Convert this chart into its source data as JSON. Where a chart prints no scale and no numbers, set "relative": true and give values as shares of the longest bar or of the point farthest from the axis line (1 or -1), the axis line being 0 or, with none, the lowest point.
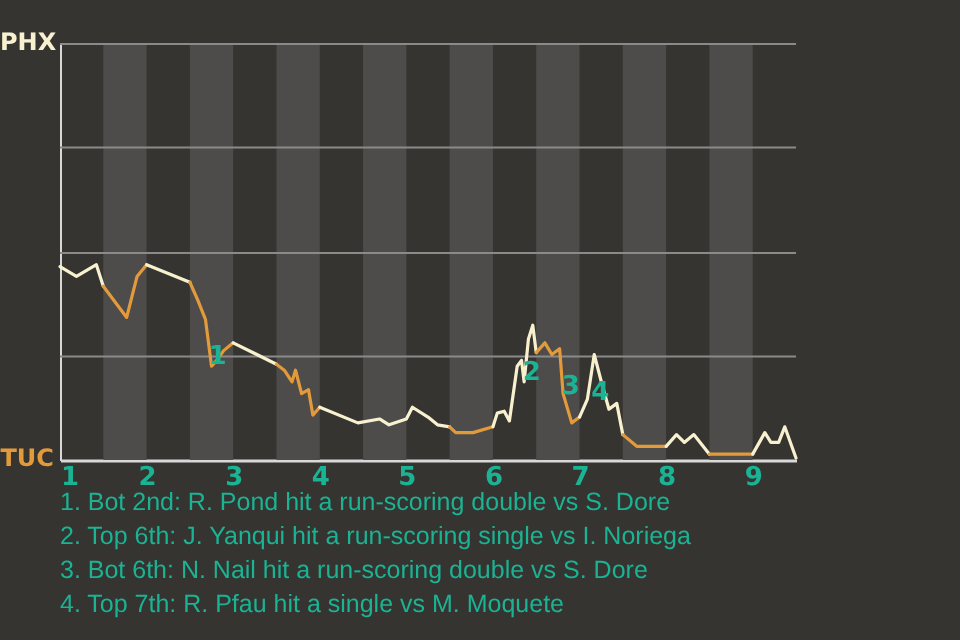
{
  "chart_data": {
    "type": "line",
    "relative": true,
    "xlim": [
      1,
      9.5
    ],
    "xticks": [
      1,
      2,
      3,
      4,
      5,
      6,
      7,
      8,
      9
    ],
    "ref_lines": [
      {
        "axis": "y",
        "value": 0.53,
        "color": "#8a8a8a"
      },
      {
        "axis": "y",
        "value": 1.06,
        "color": "#8a8a8a"
      },
      {
        "axis": "y",
        "value": 1.6,
        "color": "#8a8a8a"
      },
      {
        "axis": "y",
        "value": 2.13,
        "color": "#8a8a8a"
      }
    ],
    "bands": [
      {
        "axis": "x",
        "from": 1.5,
        "to": 2,
        "color": "#4d4c4a"
      },
      {
        "axis": "x",
        "from": 2.5,
        "to": 3,
        "color": "#4d4c4a"
      },
      {
        "axis": "x",
        "from": 3.5,
        "to": 4,
        "color": "#4d4c4a"
      },
      {
        "axis": "x",
        "from": 4.5,
        "to": 5,
        "color": "#4d4c4a"
      },
      {
        "axis": "x",
        "from": 5.5,
        "to": 6,
        "color": "#4d4c4a"
      },
      {
        "axis": "x",
        "from": 6.5,
        "to": 7,
        "color": "#4d4c4a"
      },
      {
        "axis": "x",
        "from": 7.5,
        "to": 8,
        "color": "#4d4c4a"
      },
      {
        "axis": "x",
        "from": 8.5,
        "to": 9,
        "color": "#4d4c4a"
      }
    ],
    "series": [
      {
        "color": "#f8f1cf",
        "x": [
          1,
          1.19,
          1.42,
          1.5
        ],
        "values": [
          0.99,
          0.94,
          1,
          0.89
        ]
      },
      {
        "color": "#e39a3b",
        "x": [
          1.5,
          1.77,
          1.89,
          2
        ],
        "values": [
          0.89,
          0.73,
          0.94,
          1
        ]
      },
      {
        "color": "#f8f1cf",
        "x": [
          2,
          2.5
        ],
        "values": [
          1,
          0.91
        ]
      },
      {
        "color": "#e39a3b",
        "x": [
          2.5,
          2.59,
          2.68,
          2.75,
          2.81,
          2.89,
          3
        ],
        "values": [
          0.91,
          0.82,
          0.72,
          0.48,
          0.51,
          0.56,
          0.6
        ]
      },
      {
        "color": "#f8f1cf",
        "x": [
          3,
          3.5
        ],
        "values": [
          0.6,
          0.49
        ]
      },
      {
        "color": "#e39a3b",
        "x": [
          3.5,
          3.59,
          3.68,
          3.72,
          3.79,
          3.87,
          3.92,
          4
        ],
        "values": [
          0.49,
          0.46,
          0.4,
          0.46,
          0.34,
          0.36,
          0.23,
          0.27
        ]
      },
      {
        "color": "#f8f1cf",
        "x": [
          4,
          4.44,
          4.69,
          4.8,
          5,
          5.07,
          5.25,
          5.36,
          5.5
        ],
        "values": [
          0.27,
          0.19,
          0.21,
          0.18,
          0.21,
          0.27,
          0.22,
          0.18,
          0.17
        ]
      },
      {
        "color": "#e39a3b",
        "x": [
          5.5,
          5.57,
          5.77,
          6
        ],
        "values": [
          0.17,
          0.14,
          0.14,
          0.17
        ]
      },
      {
        "color": "#f8f1cf",
        "x": [
          6,
          6.05,
          6.13,
          6.19,
          6.28,
          6.33,
          6.36,
          6.41,
          6.46,
          6.5
        ],
        "values": [
          0.17,
          0.24,
          0.25,
          0.2,
          0.48,
          0.51,
          0.4,
          0.62,
          0.69,
          0.55
        ]
      },
      {
        "color": "#e39a3b",
        "x": [
          6.5,
          6.6,
          6.68,
          6.77,
          6.81,
          6.91,
          7
        ],
        "values": [
          0.55,
          0.6,
          0.54,
          0.57,
          0.34,
          0.19,
          0.22
        ]
      },
      {
        "color": "#f8f1cf",
        "x": [
          7,
          7.09,
          7.17,
          7.27,
          7.34,
          7.43,
          7.5
        ],
        "values": [
          0.22,
          0.31,
          0.54,
          0.37,
          0.26,
          0.29,
          0.13
        ]
      },
      {
        "color": "#e39a3b",
        "x": [
          7.5,
          7.66,
          7.86,
          8
        ],
        "values": [
          0.13,
          0.07,
          0.07,
          0.07
        ]
      },
      {
        "color": "#f8f1cf",
        "x": [
          8,
          8.12,
          8.21,
          8.32,
          8.5
        ],
        "values": [
          0.07,
          0.13,
          0.09,
          0.13,
          0.03
        ]
      },
      {
        "color": "#e39a3b",
        "x": [
          8.5,
          9
        ],
        "values": [
          0.03,
          0.03
        ]
      },
      {
        "color": "#f8f1cf",
        "x": [
          9,
          9.14,
          9.21,
          9.3,
          9.37,
          9.5
        ],
        "values": [
          0.03,
          0.14,
          0.09,
          0.09,
          0.17,
          0.01
        ]
      }
    ],
    "annotations": [
      {
        "text": "1",
        "x": 2.82,
        "y": 0.53
      },
      {
        "text": "2",
        "x": 6.45,
        "y": 0.45
      },
      {
        "text": "3",
        "x": 6.9,
        "y": 0.38
      },
      {
        "text": "4",
        "x": 7.24,
        "y": 0.35
      },
      "PHX",
      "TUC",
      "1. Bot 2nd: R. Pond hit a run-scoring double vs S. Dore",
      "2. Top 6th: J. Yanqui hit a run-scoring single vs I. Noriega",
      "3. Bot 6th: N. Nail hit a run-scoring double vs S. Dore",
      "4. Top 7th: R. Pfau hit a single vs M. Moquete"
    ]
  }
}
